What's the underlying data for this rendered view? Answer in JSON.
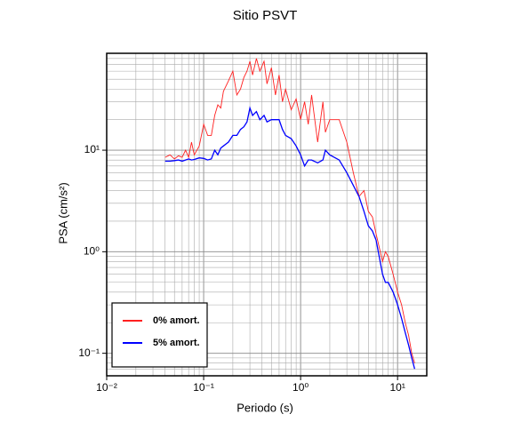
{
  "chart_data": {
    "type": "line",
    "title": "Sitio PSVT",
    "xlabel": "Periodo (s)",
    "ylabel": "PSA (cm/s²)",
    "xscale": "log",
    "yscale": "log",
    "grid": true,
    "legend": "lower left",
    "xlim": [
      0.01,
      20
    ],
    "ylim": [
      0.06,
      90
    ],
    "xticks": [
      {
        "value": 0.01,
        "label": "10⁻²"
      },
      {
        "value": 0.1,
        "label": "10⁻¹"
      },
      {
        "value": 1,
        "label": "10⁰"
      },
      {
        "value": 10,
        "label": "10¹"
      }
    ],
    "yticks": [
      {
        "value": 0.1,
        "label": "10⁻¹"
      },
      {
        "value": 1,
        "label": "10⁰"
      },
      {
        "value": 10,
        "label": "10¹"
      }
    ],
    "x": [
      0.04,
      0.045,
      0.05,
      0.055,
      0.06,
      0.065,
      0.07,
      0.075,
      0.08,
      0.09,
      0.1,
      0.11,
      0.12,
      0.13,
      0.14,
      0.15,
      0.16,
      0.18,
      0.2,
      0.22,
      0.24,
      0.26,
      0.28,
      0.3,
      0.32,
      0.35,
      0.38,
      0.42,
      0.45,
      0.5,
      0.55,
      0.6,
      0.65,
      0.7,
      0.8,
      0.9,
      1.0,
      1.1,
      1.2,
      1.3,
      1.5,
      1.7,
      1.8,
      2.0,
      2.5,
      3.0,
      3.5,
      4.0,
      4.5,
      5.0,
      5.5,
      6.0,
      7.0,
      7.5,
      8.0,
      9.0,
      10,
      11,
      12,
      13,
      14,
      15
    ],
    "series": [
      {
        "name": "0% amort.",
        "color": "#ff2020",
        "values": [
          8.5,
          9,
          8.2,
          8.8,
          8.5,
          10,
          8.5,
          12,
          9,
          11,
          18,
          14,
          14,
          22,
          28,
          26,
          38,
          48,
          60,
          35,
          40,
          52,
          60,
          75,
          55,
          80,
          60,
          75,
          45,
          65,
          35,
          55,
          30,
          40,
          25,
          32,
          20,
          30,
          18,
          35,
          12,
          30,
          15,
          20,
          20,
          12,
          6,
          3.5,
          4,
          2.5,
          2.2,
          1.5,
          0.8,
          1.0,
          0.9,
          0.6,
          0.4,
          0.3,
          0.2,
          0.15,
          0.1,
          0.08
        ]
      },
      {
        "name": "5% amort.",
        "color": "#0000ff",
        "values": [
          7.8,
          7.8,
          7.9,
          8,
          7.8,
          8,
          8.2,
          8,
          8.1,
          8.4,
          8.3,
          8,
          8.2,
          10,
          9,
          10.5,
          11,
          12,
          14,
          14,
          16,
          17,
          19,
          26,
          22,
          24,
          20,
          22,
          19,
          20,
          20,
          20,
          16,
          14,
          13,
          11,
          9,
          7,
          8,
          8,
          7.5,
          8,
          10,
          9,
          8,
          6,
          4.5,
          3.5,
          2.5,
          1.8,
          1.6,
          1.3,
          0.6,
          0.5,
          0.5,
          0.4,
          0.3,
          0.22,
          0.16,
          0.12,
          0.09,
          0.07
        ]
      }
    ]
  }
}
